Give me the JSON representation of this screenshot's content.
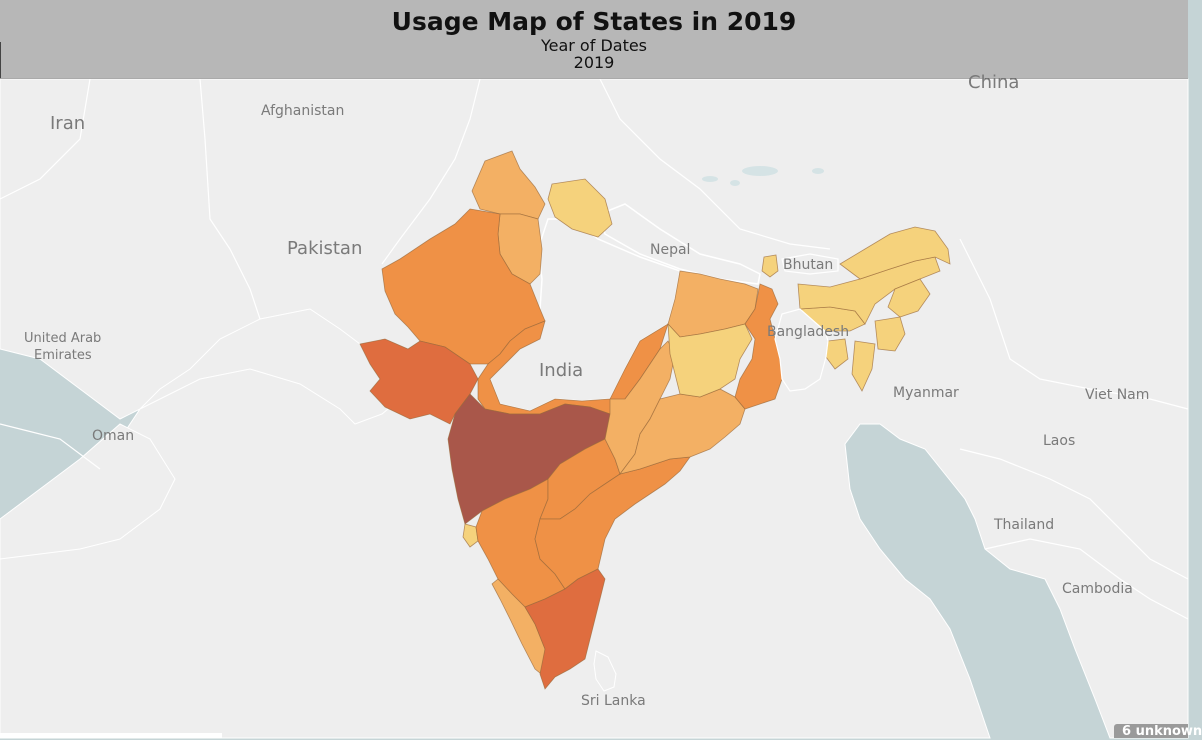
{
  "header": {
    "title": "Usage Map of States in 2019",
    "subtitle": "Year of Dates",
    "year": "2019"
  },
  "map_labels": {
    "china": "China",
    "iran": "Iran",
    "afghanistan": "Afghanistan",
    "pakistan": "Pakistan",
    "nepal": "Nepal",
    "bhutan": "Bhutan",
    "bangladesh": "Bangladesh",
    "india": "India",
    "uae": "United Arab\nEmirates",
    "uae_line1": "United Arab",
    "uae_line2": "Emirates",
    "oman": "Oman",
    "myanmar": "Myanmar",
    "vietnam": "Viet Nam",
    "laos": "Laos",
    "thailand": "Thailand",
    "cambodia": "Cambodia",
    "sri_lanka": "Sri Lanka"
  },
  "unknown_badge": "6 unknown",
  "colors": {
    "header_bg": "#b7b7b7",
    "sea": "#c5d4d6",
    "land": "#eeeeee",
    "border": "#ffffff",
    "palest": "#f5d27c",
    "light": "#f3b064",
    "medium": "#ef9146",
    "dark": "#df6d3f",
    "darkest": "#a9574a"
  },
  "regions": [
    {
      "name": "Maharashtra",
      "level": "darkest"
    },
    {
      "name": "Gujarat",
      "level": "dark"
    },
    {
      "name": "Tamil Nadu",
      "level": "dark"
    },
    {
      "name": "Rajasthan",
      "level": "medium"
    },
    {
      "name": "Karnataka",
      "level": "medium"
    },
    {
      "name": "Telangana",
      "level": "medium"
    },
    {
      "name": "Andhra Pradesh",
      "level": "medium"
    },
    {
      "name": "Madhya Pradesh",
      "level": "medium"
    },
    {
      "name": "West Bengal",
      "level": "medium"
    },
    {
      "name": "Punjab",
      "level": "light"
    },
    {
      "name": "Haryana",
      "level": "light"
    },
    {
      "name": "Chhattisgarh",
      "level": "light"
    },
    {
      "name": "Odisha",
      "level": "light"
    },
    {
      "name": "Bihar",
      "level": "light"
    },
    {
      "name": "Kerala",
      "level": "light"
    },
    {
      "name": "Uttarakhand",
      "level": "palest"
    },
    {
      "name": "Jharkhand",
      "level": "palest"
    },
    {
      "name": "Sikkim",
      "level": "palest"
    },
    {
      "name": "Assam",
      "level": "palest"
    },
    {
      "name": "Arunachal Pradesh",
      "level": "palest"
    },
    {
      "name": "Meghalaya",
      "level": "palest"
    },
    {
      "name": "Goa",
      "level": "palest"
    },
    {
      "name": "Nagaland",
      "level": "palest"
    },
    {
      "name": "Manipur",
      "level": "palest"
    },
    {
      "name": "Mizoram",
      "level": "palest"
    },
    {
      "name": "Tripura",
      "level": "palest"
    }
  ]
}
